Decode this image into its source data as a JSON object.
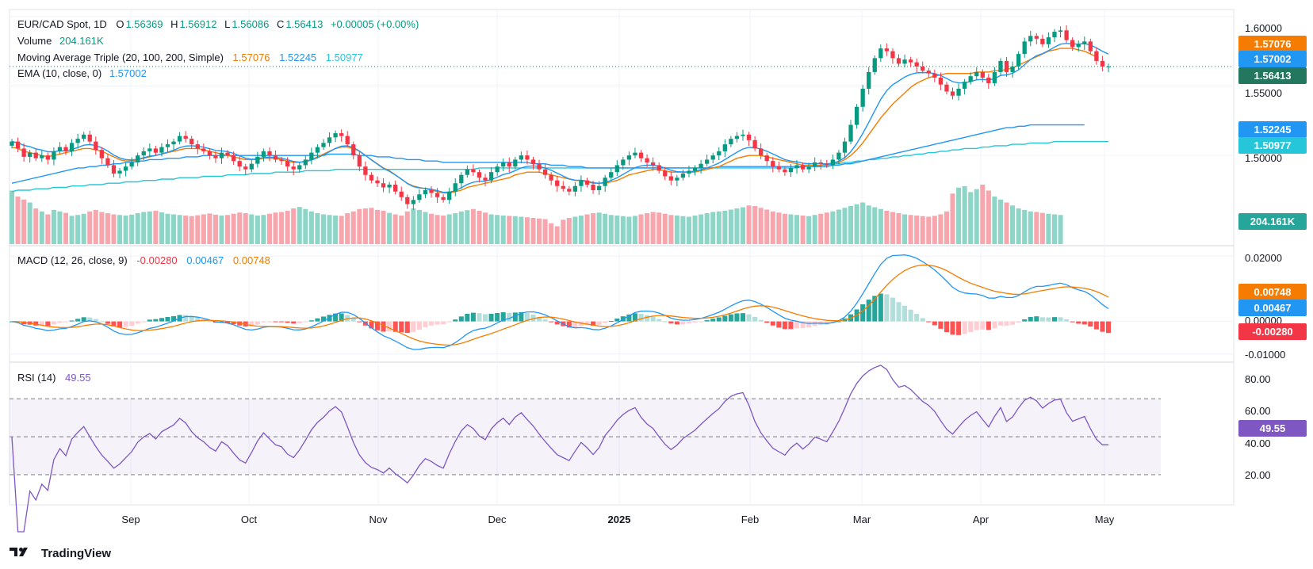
{
  "header": {
    "symbol": "EUR/CAD Spot, 1D",
    "open_label": "O",
    "open": "1.56369",
    "high_label": "H",
    "high": "1.56912",
    "low_label": "L",
    "low": "1.56086",
    "close_label": "C",
    "close": "1.56413",
    "change": "+0.00005 (+0.00%)"
  },
  "legends": {
    "volume_label": "Volume",
    "volume_value": "204.161K",
    "ma_label": "Moving Average Triple (20, 100, 200, Simple)",
    "ma20": "1.57076",
    "ma100": "1.52245",
    "ma200": "1.50977",
    "ema_label": "EMA (10, close, 0)",
    "ema_value": "1.57002",
    "macd_label": "MACD (12, 26, close, 9)",
    "macd_hist": "-0.00280",
    "macd_line": "0.00467",
    "macd_signal": "0.00748",
    "rsi_label": "RSI (14)",
    "rsi_value": "49.55"
  },
  "badges": {
    "ma20": "1.57076",
    "ema": "1.57002",
    "close": "1.56413",
    "ma100": "1.52245",
    "ma200": "1.50977",
    "volume": "204.161K",
    "macd_signal": "0.00748",
    "macd_line": "0.00467",
    "macd_hist": "-0.00280",
    "rsi": "49.55"
  },
  "axes": {
    "price_ticks": [
      "1.60000",
      "1.55000",
      "1.50000"
    ],
    "macd_ticks": [
      "0.02000",
      "0.00000",
      "-0.01000"
    ],
    "rsi_ticks": [
      "80.00",
      "60.00",
      "40.00",
      "20.00"
    ],
    "x_labels": [
      "Sep",
      "Oct",
      "Nov",
      "Dec",
      "2025",
      "Feb",
      "Mar",
      "Apr",
      "May"
    ]
  },
  "colors": {
    "up": "#089981",
    "down": "#f23645",
    "ma20": "#f57c00",
    "ma100": "#2196f3",
    "ma200": "#26c6da",
    "ema": "#2196f3",
    "rsi": "#7e57c2",
    "close_badge": "#22775e",
    "grid": "#f0f3fa"
  },
  "footer": {
    "brand": "TradingView",
    "logo_icon": "tradingview-logo-icon"
  },
  "chart_data": [
    {
      "type": "candlestick",
      "title": "EUR/CAD Spot, 1D",
      "x_axis": [
        "Sep",
        "Oct",
        "Nov",
        "Dec",
        "2025",
        "Feb",
        "Mar",
        "Apr",
        "May"
      ],
      "ylim": [
        1.475,
        1.605
      ],
      "close_series": [
        1.51,
        1.505,
        1.499,
        1.502,
        1.498,
        1.5,
        1.497,
        1.503,
        1.506,
        1.503,
        1.509,
        1.512,
        1.515,
        1.51,
        1.504,
        1.498,
        1.493,
        1.487,
        1.489,
        1.492,
        1.495,
        1.5,
        1.503,
        1.505,
        1.502,
        1.506,
        1.508,
        1.51,
        1.514,
        1.512,
        1.508,
        1.505,
        1.503,
        1.5,
        1.498,
        1.502,
        1.5,
        1.496,
        1.492,
        1.49,
        1.494,
        1.499,
        1.503,
        1.5,
        1.497,
        1.496,
        1.492,
        1.49,
        1.493,
        1.497,
        1.502,
        1.506,
        1.509,
        1.513,
        1.516,
        1.514,
        1.508,
        1.5,
        1.492,
        1.486,
        1.482,
        1.48,
        1.477,
        1.479,
        1.474,
        1.47,
        1.465,
        1.468,
        1.472,
        1.475,
        1.473,
        1.47,
        1.468,
        1.474,
        1.48,
        1.486,
        1.49,
        1.488,
        1.484,
        1.482,
        1.488,
        1.492,
        1.495,
        1.492,
        1.497,
        1.5,
        1.497,
        1.494,
        1.49,
        1.486,
        1.482,
        1.478,
        1.476,
        1.474,
        1.478,
        1.482,
        1.479,
        1.475,
        1.478,
        1.484,
        1.488,
        1.493,
        1.497,
        1.5,
        1.502,
        1.498,
        1.495,
        1.493,
        1.489,
        1.485,
        1.482,
        1.484,
        1.487,
        1.489,
        1.491,
        1.494,
        1.497,
        1.5,
        1.503,
        1.508,
        1.512,
        1.514,
        1.515,
        1.511,
        1.505,
        1.5,
        1.496,
        1.492,
        1.49,
        1.488,
        1.491,
        1.493,
        1.49,
        1.492,
        1.495,
        1.494,
        1.493,
        1.497,
        1.502,
        1.51,
        1.522,
        1.535,
        1.548,
        1.56,
        1.57,
        1.577,
        1.575,
        1.57,
        1.566,
        1.569,
        1.567,
        1.564,
        1.561,
        1.559,
        1.556,
        1.551,
        1.546,
        1.543,
        1.548,
        1.553,
        1.557,
        1.56,
        1.556,
        1.552,
        1.56,
        1.568,
        1.56,
        1.564,
        1.573,
        1.582,
        1.586,
        1.584,
        1.58,
        1.585,
        1.589,
        1.59,
        1.583,
        1.578,
        1.58,
        1.582,
        1.575,
        1.568,
        1.564,
        1.564
      ],
      "volume": [
        180,
        160,
        150,
        140,
        120,
        110,
        100,
        115,
        110,
        105,
        95,
        98,
        102,
        110,
        115,
        108,
        104,
        100,
        98,
        96,
        99,
        104,
        108,
        110,
        112,
        107,
        102,
        100,
        98,
        96,
        94,
        97,
        100,
        103,
        99,
        96,
        98,
        102,
        106,
        104,
        100,
        96,
        98,
        102,
        106,
        108,
        112,
        120,
        125,
        118,
        110,
        104,
        100,
        98,
        96,
        95,
        104,
        110,
        118,
        120,
        122,
        115,
        112,
        105,
        100,
        96,
        110,
        120,
        115,
        108,
        102,
        98,
        96,
        100,
        104,
        110,
        114,
        118,
        112,
        106,
        100,
        98,
        96,
        95,
        94,
        92,
        90,
        88,
        86,
        84,
        70,
        60,
        82,
        88,
        92,
        96,
        100,
        104,
        106,
        102,
        98,
        96,
        94,
        92,
        95,
        100,
        104,
        108,
        106,
        102,
        98,
        96,
        94,
        92,
        96,
        100,
        104,
        108,
        110,
        112,
        116,
        120,
        124,
        130,
        128,
        122,
        116,
        110,
        106,
        102,
        100,
        98,
        96,
        94,
        98,
        102,
        106,
        110,
        116,
        122,
        128,
        134,
        140,
        130,
        124,
        118,
        112,
        108,
        104,
        100,
        98,
        96,
        94,
        92,
        95,
        100,
        110,
        170,
        190,
        195,
        175,
        185,
        200,
        180,
        160,
        150,
        140,
        130,
        120,
        115,
        110,
        108,
        105,
        102,
        100,
        98
      ],
      "ma20": [
        1.506,
        1.505,
        1.503,
        1.502,
        1.501,
        1.5,
        1.499,
        1.5,
        1.501,
        1.502,
        1.503,
        1.504,
        1.505,
        1.505,
        1.504,
        1.503,
        1.501,
        1.499,
        1.497,
        1.496,
        1.496,
        1.497,
        1.498,
        1.499,
        1.5,
        1.501,
        1.502,
        1.503,
        1.504,
        1.505,
        1.505,
        1.505,
        1.504,
        1.503,
        1.502,
        1.501,
        1.5,
        1.499,
        1.498,
        1.497,
        1.497,
        1.497,
        1.498,
        1.498,
        1.498,
        1.497,
        1.496,
        1.495,
        1.495,
        1.496,
        1.497,
        1.499,
        1.501,
        1.503,
        1.505,
        1.506,
        1.506,
        1.505,
        1.503,
        1.5,
        1.497,
        1.494,
        1.491,
        1.489,
        1.486,
        1.483,
        1.48,
        1.478,
        1.477,
        1.476,
        1.475,
        1.474,
        1.473,
        1.473,
        1.474,
        1.475,
        1.477,
        1.478,
        1.479,
        1.48,
        1.481,
        1.482,
        1.483,
        1.484,
        1.486,
        1.487,
        1.488,
        1.488,
        1.488,
        1.487,
        1.486,
        1.485,
        1.484,
        1.483,
        1.482,
        1.482,
        1.481,
        1.48,
        1.48,
        1.48,
        1.481,
        1.482,
        1.484,
        1.486,
        1.487,
        1.488,
        1.489,
        1.49,
        1.49,
        1.489,
        1.488,
        1.488,
        1.488,
        1.488,
        1.488,
        1.489,
        1.49,
        1.491,
        1.492,
        1.494,
        1.496,
        1.498,
        1.499,
        1.5,
        1.5,
        1.5,
        1.499,
        1.498,
        1.497,
        1.496,
        1.495,
        1.494,
        1.493,
        1.493,
        1.493,
        1.493,
        1.494,
        1.494,
        1.495,
        1.497,
        1.5,
        1.504,
        1.509,
        1.515,
        1.521,
        1.527,
        1.532,
        1.537,
        1.541,
        1.545,
        1.549,
        1.552,
        1.554,
        1.556,
        1.557,
        1.558,
        1.559,
        1.559,
        1.559,
        1.559,
        1.559,
        1.56,
        1.56,
        1.56,
        1.561,
        1.561,
        1.562,
        1.563,
        1.565,
        1.567,
        1.569,
        1.571,
        1.573,
        1.575,
        1.576,
        1.577,
        1.577,
        1.577,
        1.576,
        1.575,
        1.573,
        1.571
      ],
      "ma100": [
        1.48,
        1.481,
        1.482,
        1.483,
        1.484,
        1.485,
        1.486,
        1.487,
        1.488,
        1.489,
        1.49,
        1.491,
        1.491,
        1.492,
        1.492,
        1.493,
        1.493,
        1.494,
        1.494,
        1.495,
        1.495,
        1.496,
        1.496,
        1.497,
        1.497,
        1.497,
        1.498,
        1.498,
        1.498,
        1.499,
        1.499,
        1.499,
        1.5,
        1.5,
        1.5,
        1.5,
        1.5,
        1.5,
        1.5,
        1.5,
        1.5,
        1.5,
        1.5,
        1.5,
        1.5,
        1.5,
        1.5,
        1.5,
        1.5,
        1.5,
        1.5,
        1.5,
        1.5,
        1.501,
        1.501,
        1.501,
        1.501,
        1.501,
        1.5,
        1.5,
        1.5,
        1.499,
        1.499,
        1.499,
        1.498,
        1.498,
        1.497,
        1.497,
        1.497,
        1.496,
        1.496,
        1.496,
        1.495,
        1.495,
        1.495,
        1.495,
        1.495,
        1.495,
        1.495,
        1.495,
        1.495,
        1.495,
        1.495,
        1.495,
        1.495,
        1.495,
        1.495,
        1.494,
        1.494,
        1.494,
        1.493,
        1.493,
        1.493,
        1.492,
        1.492,
        1.492,
        1.491,
        1.491,
        1.491,
        1.491,
        1.491,
        1.491,
        1.491,
        1.491,
        1.491,
        1.491,
        1.491,
        1.491,
        1.491,
        1.491,
        1.491,
        1.491,
        1.491,
        1.491,
        1.491,
        1.491,
        1.491,
        1.491,
        1.492,
        1.492,
        1.492,
        1.492,
        1.492,
        1.492,
        1.492,
        1.492,
        1.492,
        1.492,
        1.492,
        1.492,
        1.492,
        1.492,
        1.492,
        1.492,
        1.492,
        1.492,
        1.492,
        1.493,
        1.493,
        1.494,
        1.494,
        1.495,
        1.496,
        1.497,
        1.498,
        1.499,
        1.5,
        1.501,
        1.502,
        1.503,
        1.504,
        1.505,
        1.506,
        1.507,
        1.508,
        1.509,
        1.51,
        1.511,
        1.512,
        1.513,
        1.514,
        1.515,
        1.516,
        1.517,
        1.518,
        1.519,
        1.52,
        1.52,
        1.521,
        1.521,
        1.522,
        1.522,
        1.522,
        1.522,
        1.522,
        1.522,
        1.522,
        1.522,
        1.522,
        1.522
      ],
      "ma200": [
        1.474,
        1.475,
        1.475,
        1.475,
        1.476,
        1.476,
        1.476,
        1.477,
        1.477,
        1.477,
        1.478,
        1.478,
        1.478,
        1.479,
        1.479,
        1.479,
        1.48,
        1.48,
        1.48,
        1.481,
        1.481,
        1.481,
        1.482,
        1.482,
        1.482,
        1.483,
        1.483,
        1.483,
        1.484,
        1.484,
        1.484,
        1.484,
        1.485,
        1.485,
        1.485,
        1.485,
        1.486,
        1.486,
        1.486,
        1.486,
        1.487,
        1.487,
        1.487,
        1.487,
        1.488,
        1.488,
        1.488,
        1.488,
        1.488,
        1.489,
        1.489,
        1.489,
        1.489,
        1.489,
        1.49,
        1.49,
        1.49,
        1.49,
        1.49,
        1.49,
        1.49,
        1.49,
        1.49,
        1.49,
        1.49,
        1.49,
        1.49,
        1.49,
        1.49,
        1.49,
        1.49,
        1.49,
        1.49,
        1.49,
        1.49,
        1.49,
        1.49,
        1.49,
        1.491,
        1.491,
        1.491,
        1.491,
        1.491,
        1.491,
        1.491,
        1.491,
        1.491,
        1.491,
        1.491,
        1.491,
        1.491,
        1.491,
        1.491,
        1.491,
        1.491,
        1.491,
        1.491,
        1.491,
        1.491,
        1.491,
        1.491,
        1.491,
        1.491,
        1.491,
        1.491,
        1.491,
        1.491,
        1.491,
        1.491,
        1.491,
        1.491,
        1.491,
        1.491,
        1.491,
        1.491,
        1.491,
        1.491,
        1.491,
        1.491,
        1.491,
        1.491,
        1.491,
        1.491,
        1.491,
        1.491,
        1.491,
        1.491,
        1.491,
        1.491,
        1.491,
        1.491,
        1.491,
        1.492,
        1.492,
        1.492,
        1.493,
        1.493,
        1.494,
        1.494,
        1.495,
        1.495,
        1.496,
        1.496,
        1.497,
        1.497,
        1.498,
        1.498,
        1.499,
        1.499,
        1.5,
        1.5,
        1.501,
        1.501,
        1.502,
        1.502,
        1.503,
        1.503,
        1.504,
        1.504,
        1.505,
        1.505,
        1.505,
        1.506,
        1.506,
        1.507,
        1.507,
        1.507,
        1.508,
        1.508,
        1.508,
        1.509,
        1.509,
        1.509,
        1.509,
        1.51,
        1.51,
        1.51,
        1.51,
        1.51,
        1.51,
        1.51,
        1.51,
        1.51,
        1.51
      ]
    },
    {
      "type": "macd",
      "title": "MACD (12, 26, close, 9)",
      "ylim": [
        -0.012,
        0.022
      ]
    },
    {
      "type": "rsi",
      "title": "RSI (14)",
      "ylim": [
        15,
        88
      ],
      "bands": [
        70,
        50,
        30
      ]
    }
  ]
}
